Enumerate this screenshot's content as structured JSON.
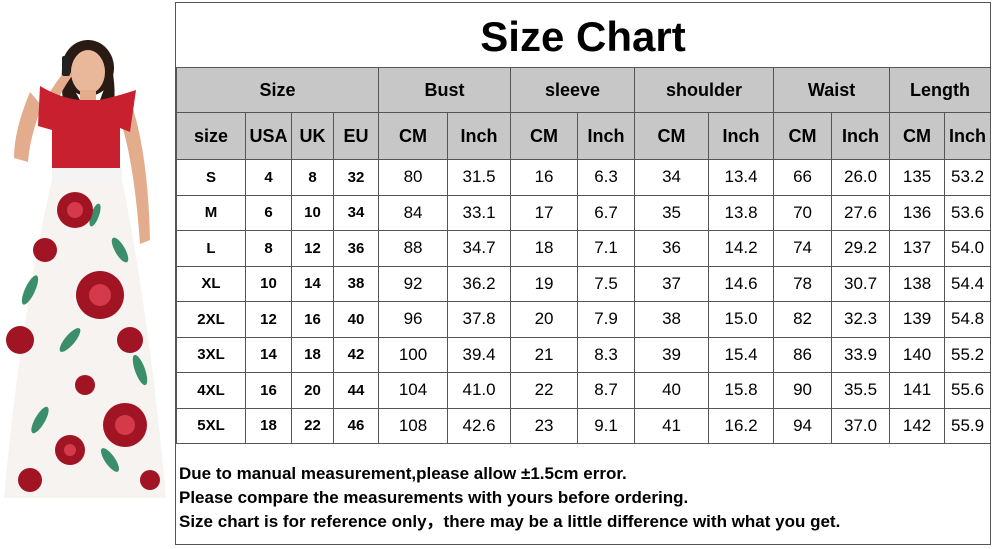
{
  "title": "Size Chart",
  "groups": [
    "Size",
    "Bust",
    "sleeve",
    "shoulder",
    "Waist",
    "Length"
  ],
  "subheaders": [
    "size",
    "USA",
    "UK",
    "EU",
    "CM",
    "Inch",
    "CM",
    "Inch",
    "CM",
    "Inch",
    "CM",
    "Inch",
    "CM",
    "Inch"
  ],
  "rows": [
    [
      "S",
      "4",
      "8",
      "32",
      "80",
      "31.5",
      "16",
      "6.3",
      "34",
      "13.4",
      "66",
      "26.0",
      "135",
      "53.2"
    ],
    [
      "M",
      "6",
      "10",
      "34",
      "84",
      "33.1",
      "17",
      "6.7",
      "35",
      "13.8",
      "70",
      "27.6",
      "136",
      "53.6"
    ],
    [
      "L",
      "8",
      "12",
      "36",
      "88",
      "34.7",
      "18",
      "7.1",
      "36",
      "14.2",
      "74",
      "29.2",
      "137",
      "54.0"
    ],
    [
      "XL",
      "10",
      "14",
      "38",
      "92",
      "36.2",
      "19",
      "7.5",
      "37",
      "14.6",
      "78",
      "30.7",
      "138",
      "54.4"
    ],
    [
      "2XL",
      "12",
      "16",
      "40",
      "96",
      "37.8",
      "20",
      "7.9",
      "38",
      "15.0",
      "82",
      "32.3",
      "139",
      "54.8"
    ],
    [
      "3XL",
      "14",
      "18",
      "42",
      "100",
      "39.4",
      "21",
      "8.3",
      "39",
      "15.4",
      "86",
      "33.9",
      "140",
      "55.2"
    ],
    [
      "4XL",
      "16",
      "20",
      "44",
      "104",
      "41.0",
      "22",
      "8.7",
      "40",
      "15.8",
      "90",
      "35.5",
      "141",
      "55.6"
    ],
    [
      "5XL",
      "18",
      "22",
      "46",
      "108",
      "42.6",
      "23",
      "9.1",
      "41",
      "16.2",
      "94",
      "37.0",
      "142",
      "55.9"
    ]
  ],
  "notes": [
    "Due to manual measurement,please allow ±1.5cm error.",
    "Please compare the measurements with yours before ordering.",
    "Size chart is for reference only，there may be a little difference with what you get."
  ],
  "colors": {
    "header_bg": "#c7c7c7",
    "dress_top": "#c8202e",
    "dress_flower": "#a01424",
    "dress_leaf": "#3a8f6a"
  }
}
